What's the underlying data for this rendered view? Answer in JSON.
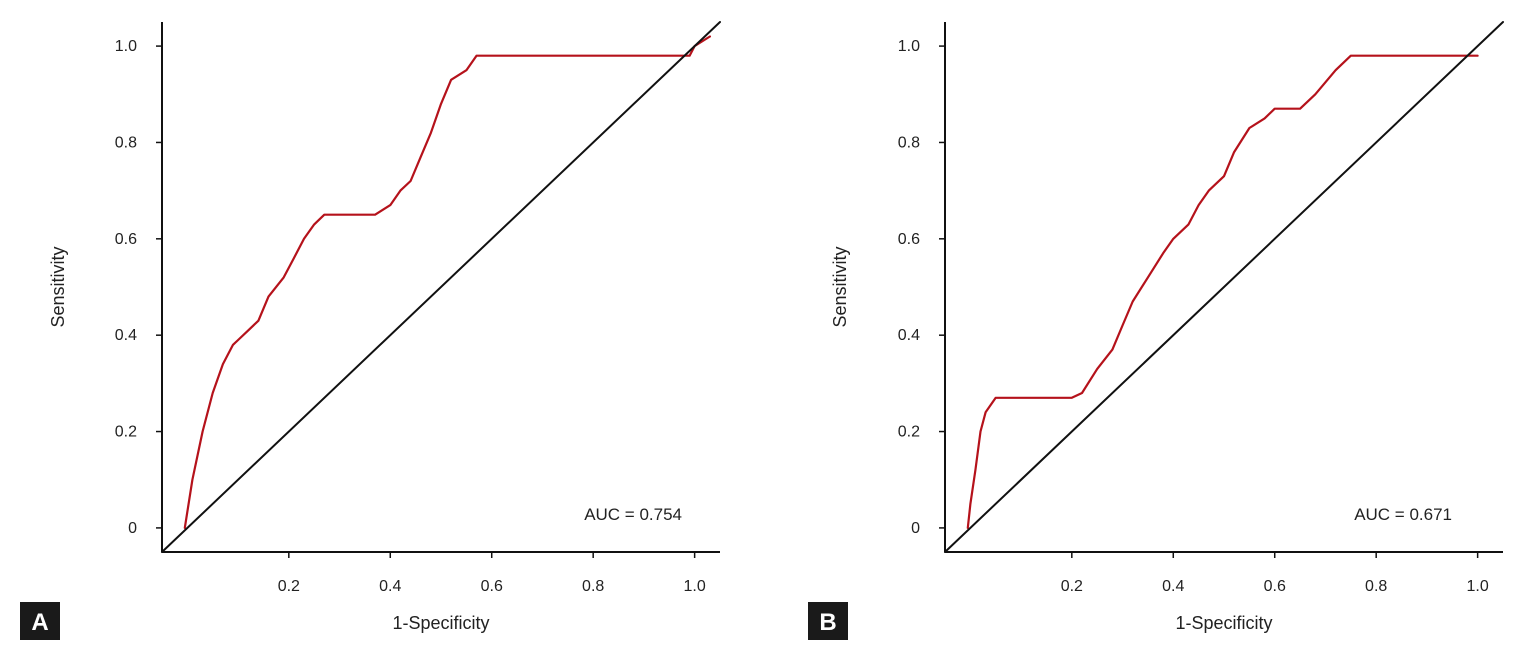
{
  "colors": {
    "roc": "#b5121b",
    "reference": "#111111",
    "axis": "#111111",
    "label_box": "#1a1a1a"
  },
  "chart_data": [
    {
      "type": "line",
      "panel_label": "A",
      "xlabel": "1-Specificity",
      "ylabel": "Sensitivity",
      "annotation": "AUC = 0.754",
      "xlim": [
        -0.05,
        1.05
      ],
      "ylim": [
        -0.05,
        1.05
      ],
      "x_ticks": [
        "0.2",
        "0.4",
        "0.6",
        "0.8",
        "1.0"
      ],
      "y_ticks": [
        "0",
        "0.2",
        "0.4",
        "0.6",
        "0.8",
        "1.0"
      ],
      "grid": false,
      "series": [
        {
          "role": "roc",
          "x": [
            -0.005,
            0.01,
            0.02,
            0.03,
            0.05,
            0.07,
            0.09,
            0.1,
            0.12,
            0.14,
            0.16,
            0.19,
            0.21,
            0.23,
            0.25,
            0.27,
            0.3,
            0.33,
            0.37,
            0.4,
            0.42,
            0.44,
            0.46,
            0.48,
            0.5,
            0.52,
            0.55,
            0.57,
            0.6,
            0.7,
            0.8,
            0.9,
            0.99,
            1.0,
            1.03
          ],
          "y": [
            0.0,
            0.1,
            0.15,
            0.2,
            0.28,
            0.34,
            0.38,
            0.39,
            0.41,
            0.43,
            0.48,
            0.52,
            0.56,
            0.6,
            0.63,
            0.65,
            0.65,
            0.65,
            0.65,
            0.67,
            0.7,
            0.72,
            0.77,
            0.82,
            0.88,
            0.93,
            0.95,
            0.98,
            0.98,
            0.98,
            0.98,
            0.98,
            0.98,
            1.0,
            1.02
          ]
        },
        {
          "role": "reference",
          "x": [
            -0.05,
            1.05
          ],
          "y": [
            -0.05,
            1.05
          ]
        }
      ]
    },
    {
      "type": "line",
      "panel_label": "B",
      "xlabel": "1-Specificity",
      "ylabel": "Sensitivity",
      "annotation": "AUC = 0.671",
      "xlim": [
        -0.05,
        1.05
      ],
      "ylim": [
        -0.05,
        1.05
      ],
      "x_ticks": [
        "0.2",
        "0.4",
        "0.6",
        "0.8",
        "1.0"
      ],
      "y_ticks": [
        "0",
        "0.2",
        "0.4",
        "0.6",
        "0.8",
        "1.0"
      ],
      "grid": false,
      "series": [
        {
          "role": "roc",
          "x": [
            -0.005,
            0.0,
            0.01,
            0.02,
            0.03,
            0.05,
            0.1,
            0.15,
            0.2,
            0.22,
            0.25,
            0.28,
            0.3,
            0.32,
            0.35,
            0.38,
            0.4,
            0.43,
            0.45,
            0.47,
            0.5,
            0.52,
            0.55,
            0.58,
            0.6,
            0.63,
            0.65,
            0.68,
            0.72,
            0.75,
            0.8,
            0.9,
            1.0
          ],
          "y": [
            0.0,
            0.05,
            0.12,
            0.2,
            0.24,
            0.27,
            0.27,
            0.27,
            0.27,
            0.28,
            0.33,
            0.37,
            0.42,
            0.47,
            0.52,
            0.57,
            0.6,
            0.63,
            0.67,
            0.7,
            0.73,
            0.78,
            0.83,
            0.85,
            0.87,
            0.87,
            0.87,
            0.9,
            0.95,
            0.98,
            0.98,
            0.98,
            0.98
          ]
        },
        {
          "role": "reference",
          "x": [
            -0.05,
            1.05
          ],
          "y": [
            -0.05,
            1.05
          ]
        }
      ]
    }
  ]
}
